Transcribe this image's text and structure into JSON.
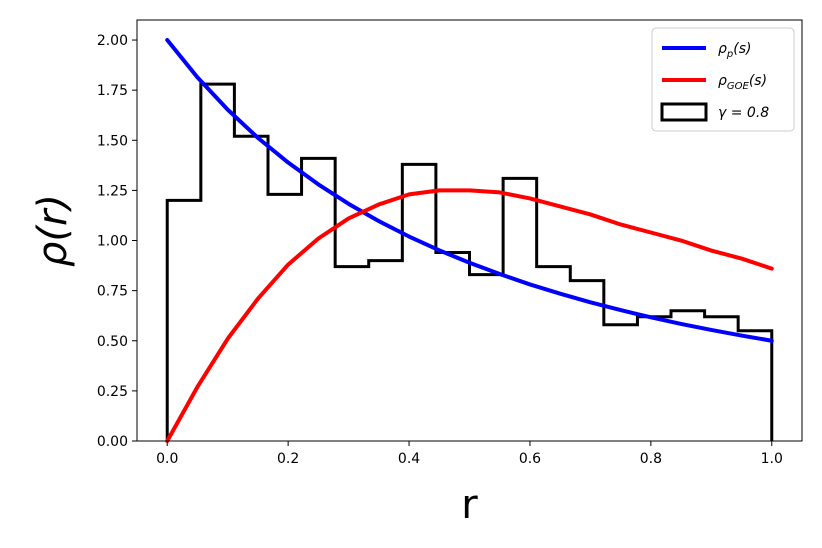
{
  "chart_data": {
    "type": "line",
    "xlabel": "r",
    "ylabel": "ρ(r)",
    "xlim": [
      -0.05,
      1.05
    ],
    "ylim": [
      0.0,
      2.1
    ],
    "xticks": [
      "0.0",
      "0.2",
      "0.4",
      "0.6",
      "0.8",
      "1.0"
    ],
    "yticks": [
      "0.00",
      "0.25",
      "0.50",
      "0.75",
      "1.00",
      "1.25",
      "1.50",
      "1.75",
      "2.00"
    ],
    "grid": false,
    "legend_position": "top-right",
    "series": [
      {
        "name": "ρ_p(s)",
        "kind": "line",
        "color": "#0000ff",
        "x": [
          0.0,
          0.05,
          0.1,
          0.15,
          0.2,
          0.25,
          0.3,
          0.35,
          0.4,
          0.45,
          0.5,
          0.55,
          0.6,
          0.65,
          0.7,
          0.75,
          0.8,
          0.85,
          0.9,
          0.95,
          1.0
        ],
        "values": [
          2.0,
          1.814,
          1.653,
          1.512,
          1.389,
          1.28,
          1.183,
          1.097,
          1.02,
          0.951,
          0.889,
          0.833,
          0.781,
          0.735,
          0.692,
          0.653,
          0.617,
          0.584,
          0.554,
          0.526,
          0.5
        ]
      },
      {
        "name": "ρ_GOE(s)",
        "kind": "line",
        "color": "#ff0000",
        "x": [
          0.0,
          0.05,
          0.1,
          0.15,
          0.2,
          0.25,
          0.3,
          0.35,
          0.4,
          0.45,
          0.5,
          0.55,
          0.6,
          0.65,
          0.7,
          0.75,
          0.8,
          0.85,
          0.9,
          0.95,
          1.0
        ],
        "values": [
          0.0,
          0.27,
          0.51,
          0.71,
          0.88,
          1.01,
          1.11,
          1.18,
          1.23,
          1.25,
          1.25,
          1.24,
          1.21,
          1.17,
          1.13,
          1.08,
          1.04,
          1.0,
          0.95,
          0.91,
          0.86
        ]
      },
      {
        "name": "γ = 0.8",
        "kind": "histogram",
        "color": "#000000",
        "bin_edges": [
          0.0,
          0.0556,
          0.1111,
          0.1667,
          0.2222,
          0.2778,
          0.3333,
          0.3889,
          0.4444,
          0.5,
          0.5556,
          0.6111,
          0.6667,
          0.7222,
          0.7778,
          0.8333,
          0.8889,
          0.9444,
          1.0
        ],
        "values": [
          1.2,
          1.78,
          1.52,
          1.23,
          1.41,
          0.87,
          0.9,
          1.38,
          0.94,
          0.83,
          1.31,
          0.87,
          0.8,
          0.58,
          0.62,
          0.65,
          0.62,
          0.55
        ]
      }
    ],
    "legend": [
      {
        "base": "ρ",
        "sub": "p",
        "rest": "(s)",
        "color": "#0000ff",
        "kind": "line"
      },
      {
        "base": "ρ",
        "sub": "GOE",
        "rest": "(s)",
        "color": "#ff0000",
        "kind": "line"
      },
      {
        "base": "γ = 0.8",
        "sub": "",
        "rest": "",
        "color": "#000000",
        "kind": "box"
      }
    ]
  }
}
